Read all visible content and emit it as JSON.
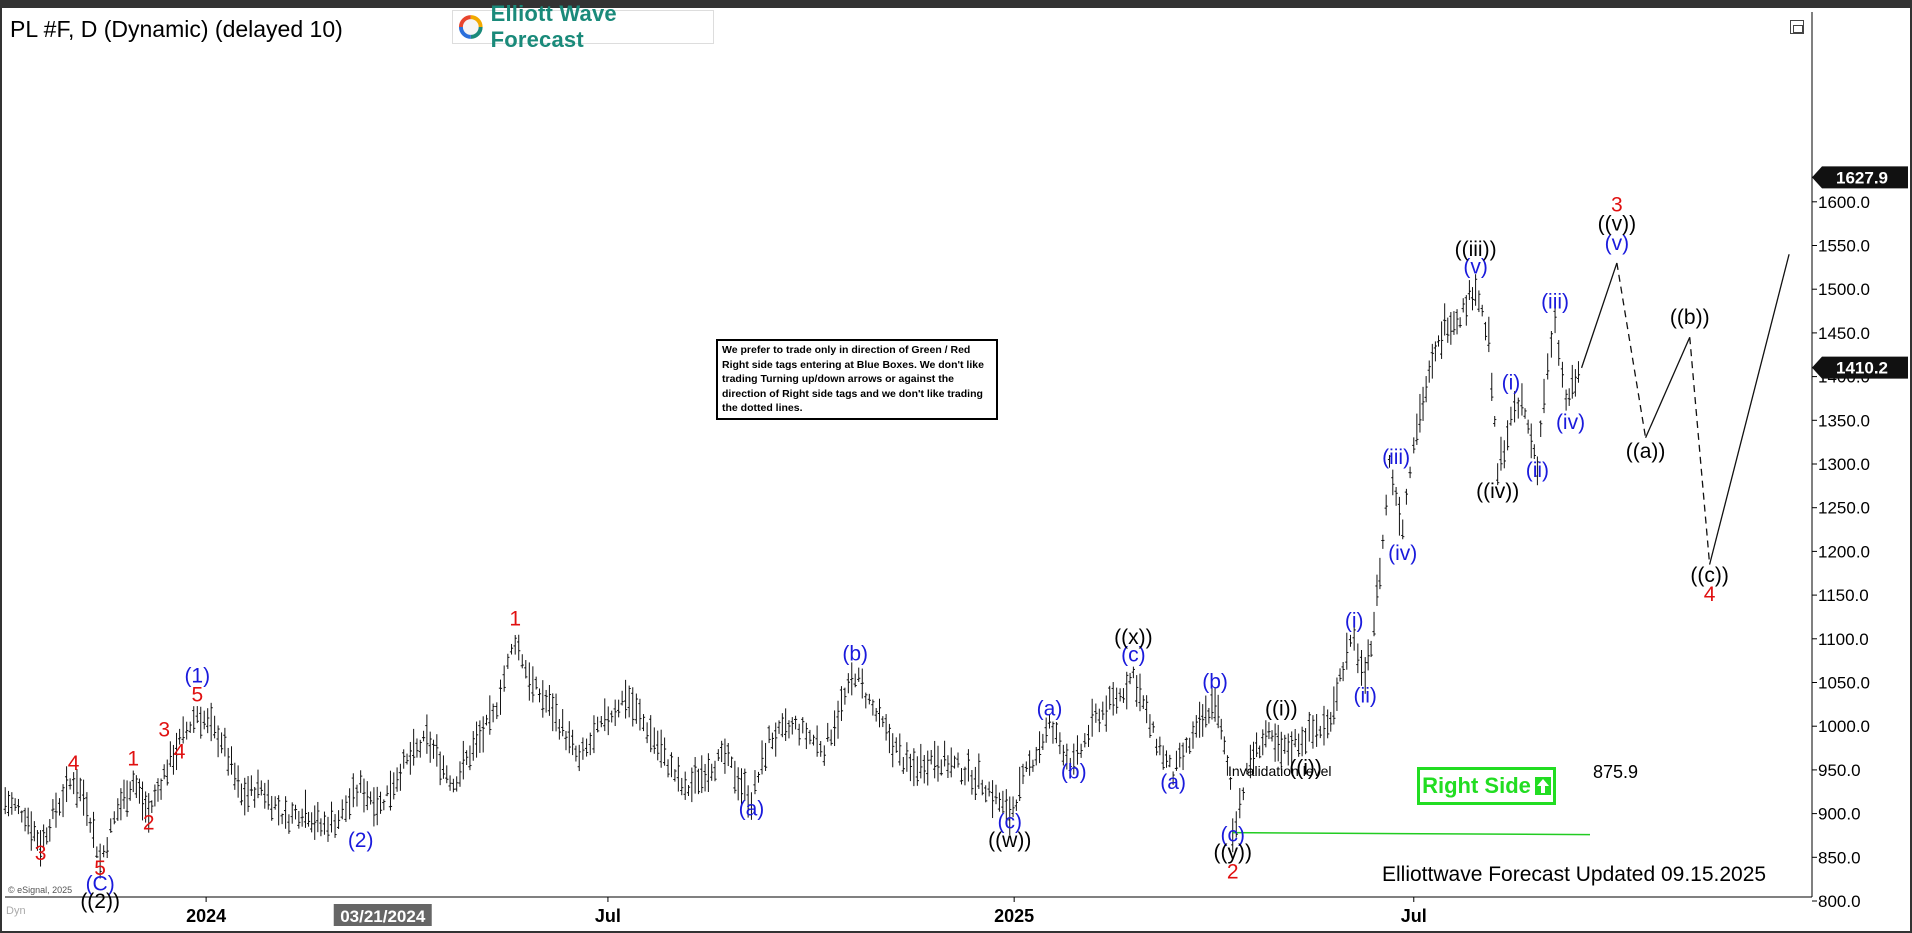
{
  "header": {
    "title": "PL #F, D (Dynamic) (delayed 10)",
    "logo_text": "Elliott Wave Forecast"
  },
  "note": "We prefer to trade only in direction of Green / Red Right side tags entering at Blue Boxes. We don't like trading Turning up/down arrows or against the direction of Right side tags and we don't like trading the dotted lines.",
  "right_side_tag": "Right Side",
  "updated_text": "Elliottwave Forecast Updated 09.15.2025",
  "copyright": "© eSignal, 2025",
  "dyn_label": "Dyn",
  "invalidation": {
    "label": "Invalidation level",
    "value_text": "875.9",
    "value": 875.9
  },
  "colors": {
    "red": "#e01010",
    "blue": "#1a1adc",
    "black": "#000000",
    "green": "#22dd22",
    "price_box": "#111111"
  },
  "chart_data": {
    "type": "line",
    "ylim": [
      770,
      1640
    ],
    "y_ticks": [
      "800.0",
      "850.0",
      "900.0",
      "950.0",
      "1000.0",
      "1050.0",
      "1100.0",
      "1150.0",
      "1200.0",
      "1250.0",
      "1300.0",
      "1350.0",
      "1400.0",
      "1450.0",
      "1500.0",
      "1550.0",
      "1600.0"
    ],
    "x_ticks": [
      {
        "label": "2024",
        "date": "2024-01-01"
      },
      {
        "label": "Jul",
        "date": "2024-07-01"
      },
      {
        "label": "2025",
        "date": "2025-01-01"
      },
      {
        "label": "Jul",
        "date": "2025-07-01"
      }
    ],
    "cursor_date_label": "03/21/2024",
    "last_price": "1410.2",
    "max_price": "1627.9",
    "price_series": [
      {
        "d": "2023-10-02",
        "v": 915
      },
      {
        "d": "2023-10-11",
        "v": 900
      },
      {
        "d": "2023-10-18",
        "v": 865
      },
      {
        "d": "2023-10-25",
        "v": 905
      },
      {
        "d": "2023-11-02",
        "v": 940
      },
      {
        "d": "2023-11-08",
        "v": 912
      },
      {
        "d": "2023-11-14",
        "v": 845
      },
      {
        "d": "2023-11-22",
        "v": 905
      },
      {
        "d": "2023-11-29",
        "v": 938
      },
      {
        "d": "2023-12-06",
        "v": 900
      },
      {
        "d": "2023-12-13",
        "v": 945
      },
      {
        "d": "2023-12-20",
        "v": 982
      },
      {
        "d": "2023-12-28",
        "v": 1015
      },
      {
        "d": "2024-01-08",
        "v": 985
      },
      {
        "d": "2024-01-17",
        "v": 920
      },
      {
        "d": "2024-01-26",
        "v": 930
      },
      {
        "d": "2024-02-06",
        "v": 895
      },
      {
        "d": "2024-02-15",
        "v": 905
      },
      {
        "d": "2024-02-22",
        "v": 885
      },
      {
        "d": "2024-03-01",
        "v": 895
      },
      {
        "d": "2024-03-11",
        "v": 930
      },
      {
        "d": "2024-03-20",
        "v": 910
      },
      {
        "d": "2024-03-29",
        "v": 950
      },
      {
        "d": "2024-04-10",
        "v": 985
      },
      {
        "d": "2024-04-22",
        "v": 935
      },
      {
        "d": "2024-05-01",
        "v": 975
      },
      {
        "d": "2024-05-10",
        "v": 1010
      },
      {
        "d": "2024-05-20",
        "v": 1100
      },
      {
        "d": "2024-05-28",
        "v": 1045
      },
      {
        "d": "2024-06-06",
        "v": 1020
      },
      {
        "d": "2024-06-18",
        "v": 960
      },
      {
        "d": "2024-06-28",
        "v": 1000
      },
      {
        "d": "2024-07-09",
        "v": 1035
      },
      {
        "d": "2024-07-22",
        "v": 985
      },
      {
        "d": "2024-08-05",
        "v": 925
      },
      {
        "d": "2024-08-14",
        "v": 950
      },
      {
        "d": "2024-08-23",
        "v": 965
      },
      {
        "d": "2024-09-04",
        "v": 915
      },
      {
        "d": "2024-09-12",
        "v": 985
      },
      {
        "d": "2024-09-24",
        "v": 1000
      },
      {
        "d": "2024-10-07",
        "v": 975
      },
      {
        "d": "2024-10-21",
        "v": 1060
      },
      {
        "d": "2024-10-29",
        "v": 1020
      },
      {
        "d": "2024-11-07",
        "v": 980
      },
      {
        "d": "2024-11-15",
        "v": 950
      },
      {
        "d": "2024-11-26",
        "v": 965
      },
      {
        "d": "2024-12-05",
        "v": 955
      },
      {
        "d": "2024-12-16",
        "v": 940
      },
      {
        "d": "2024-12-30",
        "v": 900
      },
      {
        "d": "2025-01-08",
        "v": 955
      },
      {
        "d": "2025-01-17",
        "v": 1000
      },
      {
        "d": "2025-01-28",
        "v": 955
      },
      {
        "d": "2025-02-07",
        "v": 1010
      },
      {
        "d": "2025-02-18",
        "v": 1035
      },
      {
        "d": "2025-02-24",
        "v": 1060
      },
      {
        "d": "2025-03-05",
        "v": 990
      },
      {
        "d": "2025-03-14",
        "v": 945
      },
      {
        "d": "2025-03-26",
        "v": 1000
      },
      {
        "d": "2025-04-02",
        "v": 1030
      },
      {
        "d": "2025-04-09",
        "v": 935
      },
      {
        "d": "2025-04-10",
        "v": 880
      },
      {
        "d": "2025-04-18",
        "v": 960
      },
      {
        "d": "2025-04-25",
        "v": 990
      },
      {
        "d": "2025-05-02",
        "v": 970
      },
      {
        "d": "2025-05-13",
        "v": 990
      },
      {
        "d": "2025-05-23",
        "v": 1000
      },
      {
        "d": "2025-05-30",
        "v": 1070
      },
      {
        "d": "2025-06-04",
        "v": 1100
      },
      {
        "d": "2025-06-09",
        "v": 1050
      },
      {
        "d": "2025-06-13",
        "v": 1120
      },
      {
        "d": "2025-06-17",
        "v": 1210
      },
      {
        "d": "2025-06-20",
        "v": 1300
      },
      {
        "d": "2025-06-26",
        "v": 1230
      },
      {
        "d": "2025-07-01",
        "v": 1330
      },
      {
        "d": "2025-07-08",
        "v": 1400
      },
      {
        "d": "2025-07-15",
        "v": 1460
      },
      {
        "d": "2025-07-22",
        "v": 1470
      },
      {
        "d": "2025-07-29",
        "v": 1505
      },
      {
        "d": "2025-08-04",
        "v": 1440
      },
      {
        "d": "2025-08-08",
        "v": 1290
      },
      {
        "d": "2025-08-14",
        "v": 1350
      },
      {
        "d": "2025-08-19",
        "v": 1370
      },
      {
        "d": "2025-08-26",
        "v": 1300
      },
      {
        "d": "2025-08-29",
        "v": 1380
      },
      {
        "d": "2025-09-03",
        "v": 1460
      },
      {
        "d": "2025-09-08",
        "v": 1370
      },
      {
        "d": "2025-09-15",
        "v": 1410
      }
    ],
    "projection": [
      {
        "d": "2025-09-15",
        "v": 1410,
        "style": "solid"
      },
      {
        "d": "2025-10-01",
        "v": 1530,
        "style": "solid"
      },
      {
        "d": "2025-10-14",
        "v": 1330,
        "style": "dashed"
      },
      {
        "d": "2025-11-03",
        "v": 1445,
        "style": "solid"
      },
      {
        "d": "2025-11-12",
        "v": 1185,
        "style": "dashed"
      },
      {
        "d": "2025-12-18",
        "v": 1540,
        "style": "solid"
      }
    ],
    "wave_labels": [
      {
        "text": "3",
        "d": "2023-10-18",
        "v": 847,
        "color": "red"
      },
      {
        "text": "4",
        "d": "2023-11-02",
        "v": 950,
        "color": "red"
      },
      {
        "text": "5",
        "d": "2023-11-14",
        "v": 830,
        "color": "red"
      },
      {
        "text": "(C)",
        "d": "2023-11-14",
        "v": 812,
        "color": "blue"
      },
      {
        "text": "((2))",
        "d": "2023-11-14",
        "v": 792,
        "color": "black"
      },
      {
        "text": "1",
        "d": "2023-11-29",
        "v": 955,
        "color": "red"
      },
      {
        "text": "2",
        "d": "2023-12-06",
        "v": 882,
        "color": "red"
      },
      {
        "text": "3",
        "d": "2023-12-13",
        "v": 988,
        "color": "red"
      },
      {
        "text": "4",
        "d": "2023-12-20",
        "v": 963,
        "color": "red"
      },
      {
        "text": "5",
        "d": "2023-12-28",
        "v": 1028,
        "color": "red"
      },
      {
        "text": "(1)",
        "d": "2023-12-28",
        "v": 1050,
        "color": "blue"
      },
      {
        "text": "(2)",
        "d": "2024-03-11",
        "v": 862,
        "color": "blue"
      },
      {
        "text": "1",
        "d": "2024-05-20",
        "v": 1115,
        "color": "red"
      },
      {
        "text": "(a)",
        "d": "2024-09-04",
        "v": 898,
        "color": "blue"
      },
      {
        "text": "(b)",
        "d": "2024-10-21",
        "v": 1075,
        "color": "blue"
      },
      {
        "text": "(c)",
        "d": "2024-12-30",
        "v": 883,
        "color": "blue"
      },
      {
        "text": "((w))",
        "d": "2024-12-30",
        "v": 862,
        "color": "black"
      },
      {
        "text": "(a)",
        "d": "2025-01-17",
        "v": 1012,
        "color": "blue"
      },
      {
        "text": "(b)",
        "d": "2025-01-28",
        "v": 940,
        "color": "blue"
      },
      {
        "text": "(c)",
        "d": "2025-02-24",
        "v": 1074,
        "color": "blue"
      },
      {
        "text": "((x))",
        "d": "2025-02-24",
        "v": 1094,
        "color": "black"
      },
      {
        "text": "(a)",
        "d": "2025-03-14",
        "v": 928,
        "color": "blue"
      },
      {
        "text": "(b)",
        "d": "2025-04-02",
        "v": 1043,
        "color": "blue"
      },
      {
        "text": "(c)",
        "d": "2025-04-10",
        "v": 868,
        "color": "blue"
      },
      {
        "text": "((y))",
        "d": "2025-04-10",
        "v": 848,
        "color": "black"
      },
      {
        "text": "2",
        "d": "2025-04-10",
        "v": 826,
        "color": "red"
      },
      {
        "text": "((i))",
        "d": "2025-05-02",
        "v": 1012,
        "color": "black"
      },
      {
        "text": "((i))",
        "d": "2025-05-13",
        "v": 945,
        "color": "black"
      },
      {
        "text": "(i)",
        "d": "2025-06-04",
        "v": 1113,
        "color": "blue"
      },
      {
        "text": "(ii)",
        "d": "2025-06-09",
        "v": 1027,
        "color": "blue"
      },
      {
        "text": "(iv)",
        "d": "2025-06-26",
        "v": 1190,
        "color": "blue"
      },
      {
        "text": "(iii)",
        "d": "2025-06-23",
        "v": 1300,
        "color": "blue"
      },
      {
        "text": "(v)",
        "d": "2025-07-29",
        "v": 1518,
        "color": "blue"
      },
      {
        "text": "((iii))",
        "d": "2025-07-29",
        "v": 1538,
        "color": "black"
      },
      {
        "text": "((iv))",
        "d": "2025-08-08",
        "v": 1261,
        "color": "black"
      },
      {
        "text": "(i)",
        "d": "2025-08-14",
        "v": 1385,
        "color": "blue"
      },
      {
        "text": "(ii)",
        "d": "2025-08-26",
        "v": 1285,
        "color": "blue"
      },
      {
        "text": "(iii)",
        "d": "2025-09-03",
        "v": 1478,
        "color": "blue"
      },
      {
        "text": "(iv)",
        "d": "2025-09-10",
        "v": 1340,
        "color": "blue"
      },
      {
        "text": "(v)",
        "d": "2025-10-01",
        "v": 1545,
        "color": "blue"
      },
      {
        "text": "((v))",
        "d": "2025-10-01",
        "v": 1567,
        "color": "black"
      },
      {
        "text": "3",
        "d": "2025-10-01",
        "v": 1589,
        "color": "red"
      },
      {
        "text": "((a))",
        "d": "2025-10-14",
        "v": 1307,
        "color": "black"
      },
      {
        "text": "((b))",
        "d": "2025-11-03",
        "v": 1460,
        "color": "black"
      },
      {
        "text": "((c))",
        "d": "2025-11-12",
        "v": 1165,
        "color": "black"
      },
      {
        "text": "4",
        "d": "2025-11-12",
        "v": 1143,
        "color": "red"
      }
    ]
  }
}
